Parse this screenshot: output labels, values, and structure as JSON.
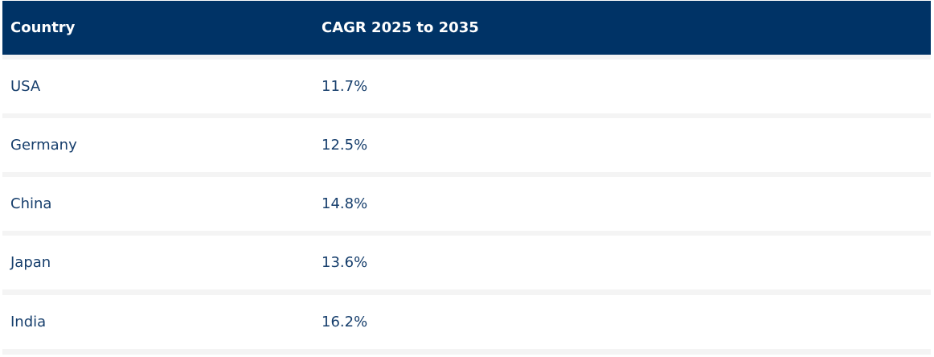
{
  "table": {
    "headers": {
      "country": "Country",
      "cagr": "CAGR 2025 to 2035"
    },
    "rows": [
      {
        "country": "USA",
        "cagr": "11.7%"
      },
      {
        "country": "Germany",
        "cagr": "12.5%"
      },
      {
        "country": "China",
        "cagr": "14.8%"
      },
      {
        "country": "Japan",
        "cagr": "13.6%"
      },
      {
        "country": "India",
        "cagr": "16.2%"
      }
    ]
  },
  "colors": {
    "header_bg": "#003366",
    "header_text": "#ffffff",
    "body_text": "#163e6c",
    "row_bg": "#ffffff",
    "separator": "#f4f4f4"
  }
}
